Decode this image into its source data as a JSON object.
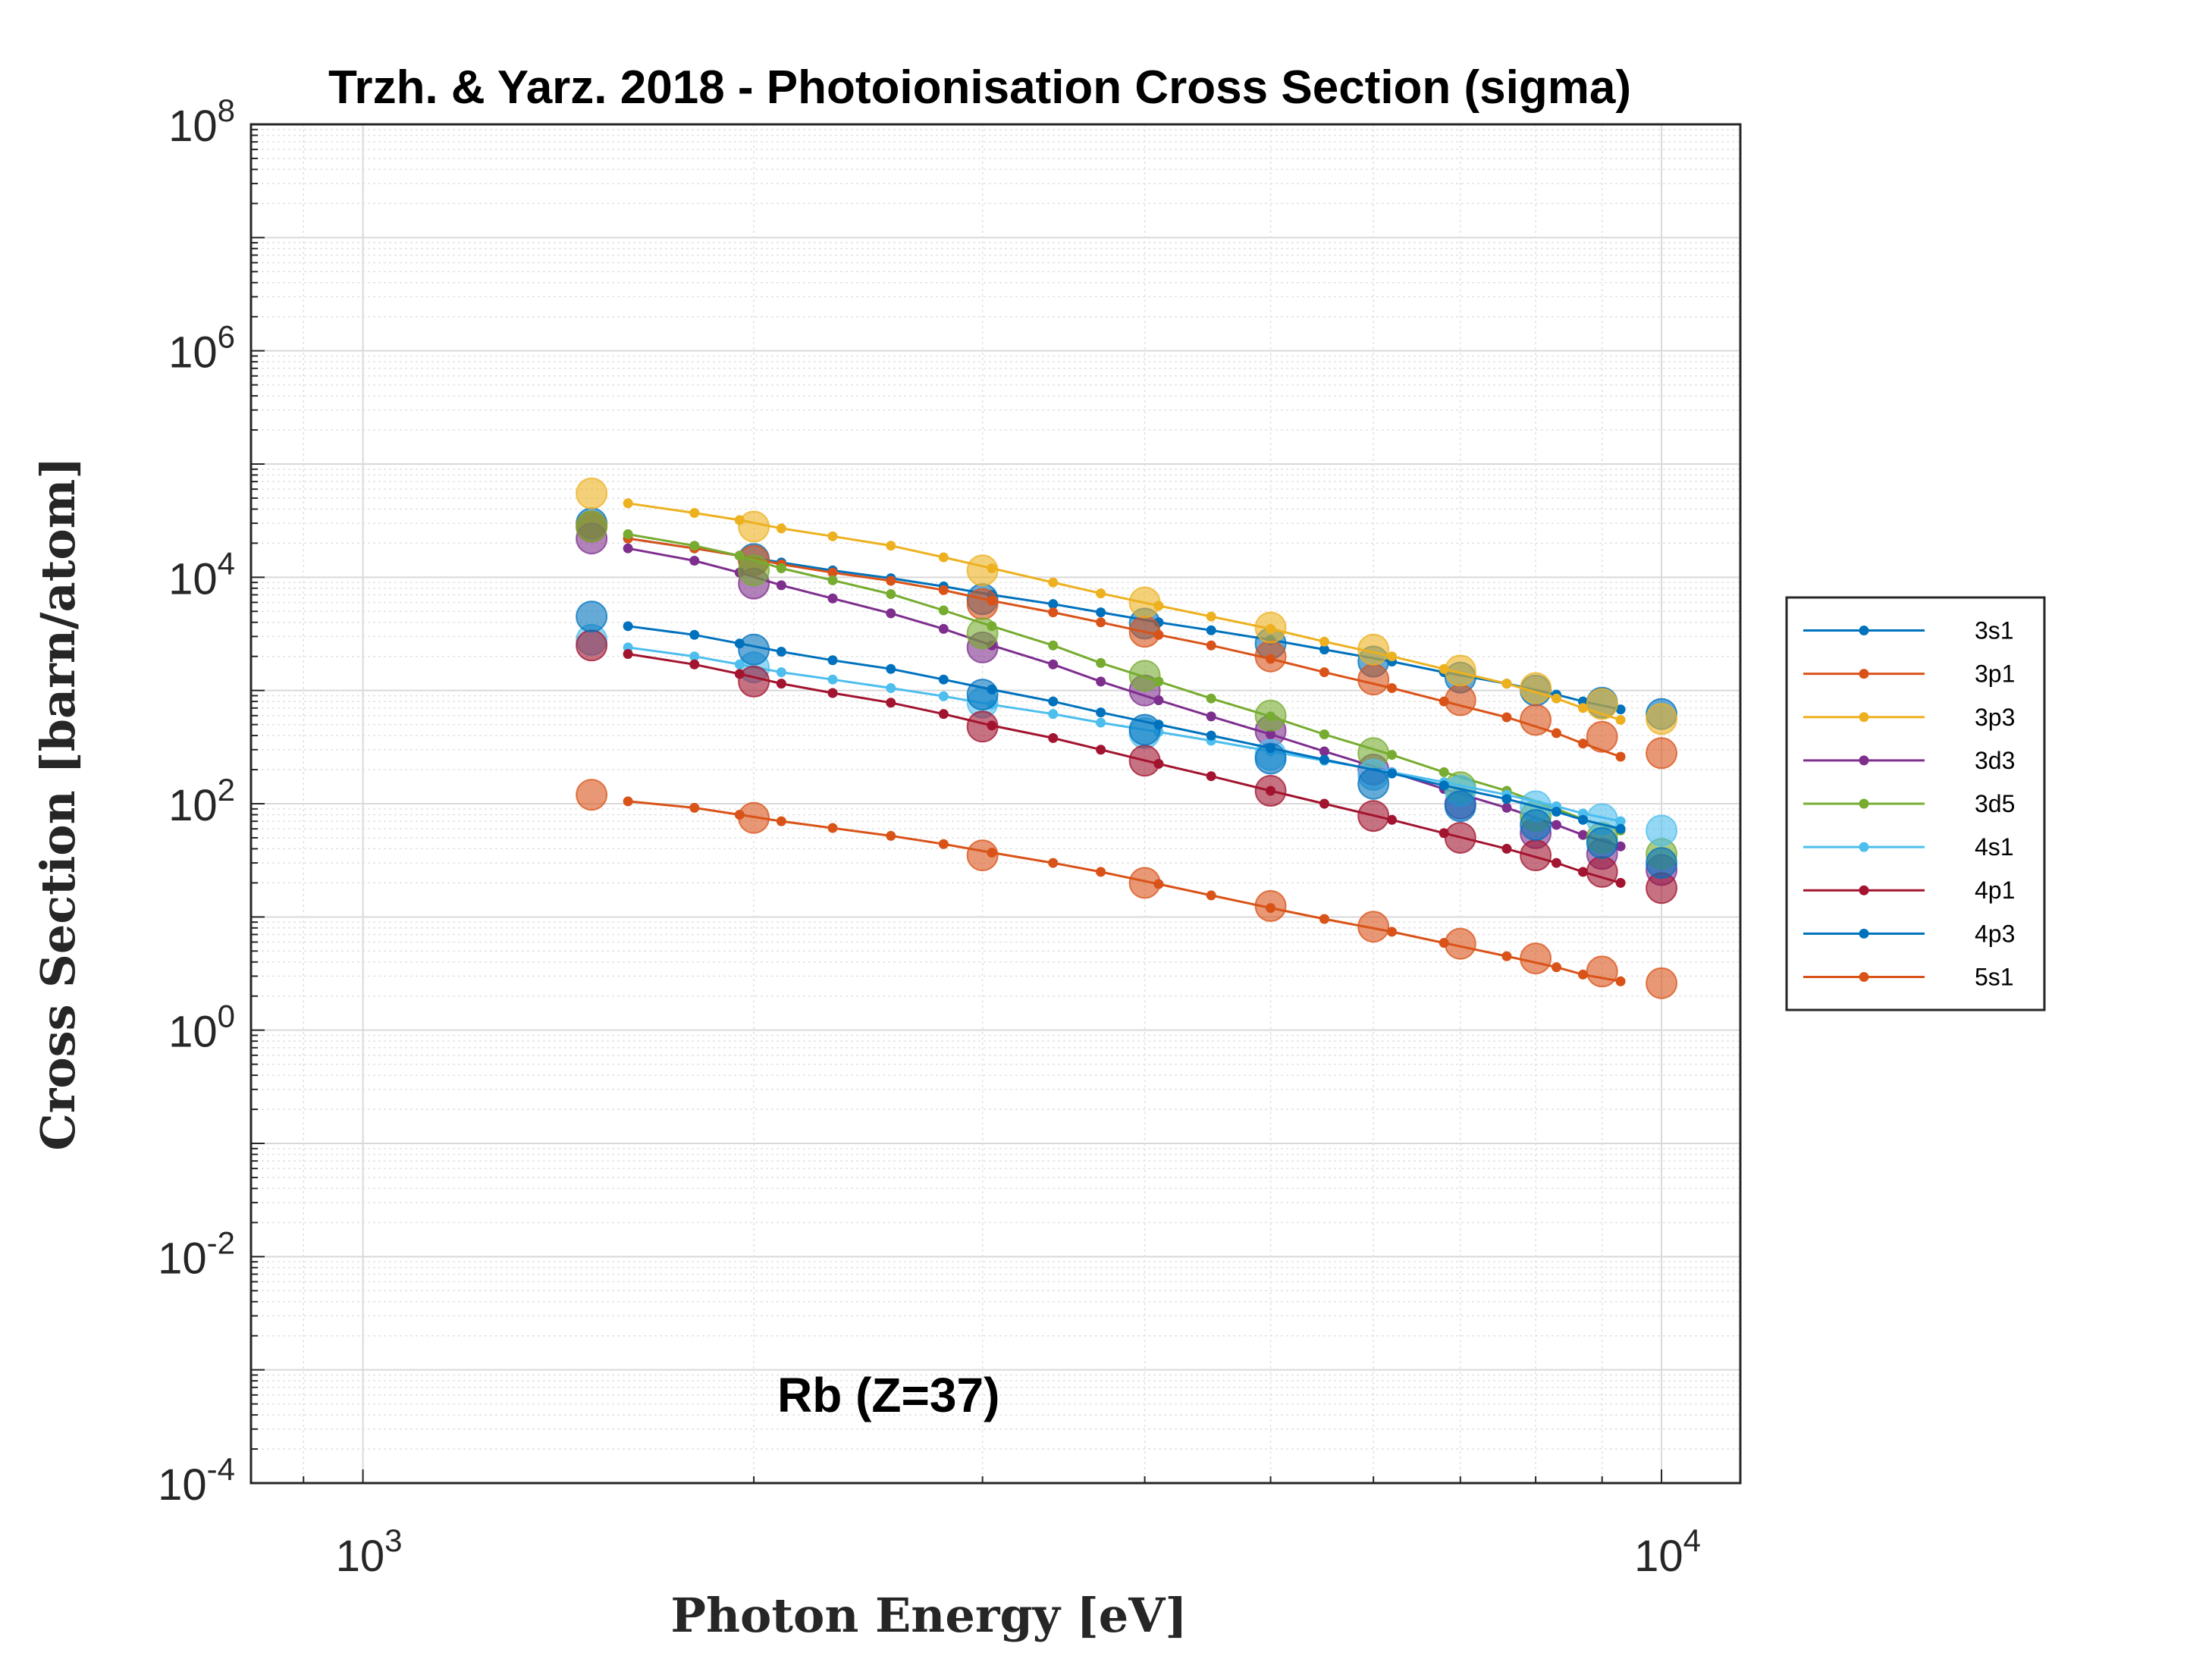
{
  "chart_data": {
    "type": "scatter",
    "title": "Trzh. & Yarz. 2018 - Photoionisation Cross Section (sigma)",
    "xlabel": "Photon Energy [eV]",
    "ylabel": "Cross Section [barn/atom]",
    "annotation": "Rb (Z=37)",
    "xscale": "log",
    "yscale": "log",
    "xlim": [
      820,
      11500
    ],
    "ylim": [
      0.0001,
      100000000
    ],
    "x_ticks": [
      {
        "base": "10",
        "exp": "3",
        "value": 1000
      },
      {
        "base": "10",
        "exp": "4",
        "value": 10000
      }
    ],
    "y_ticks": [
      {
        "base": "10",
        "exp": "8",
        "value": 100000000
      },
      {
        "base": "10",
        "exp": "6",
        "value": 1000000
      },
      {
        "base": "10",
        "exp": "4",
        "value": 10000
      },
      {
        "base": "10",
        "exp": "2",
        "value": 100
      },
      {
        "base": "10",
        "exp": "0",
        "value": 1
      },
      {
        "base": "10",
        "exp": "-2",
        "value": 0.01
      },
      {
        "base": "10",
        "exp": "-4",
        "value": 0.0001
      }
    ],
    "grid": true,
    "legend_position": "outside-right",
    "line_x": [
      1600,
      1800,
      1950,
      2100,
      2300,
      2550,
      2800,
      3050,
      3400,
      3700,
      4100,
      4500,
      5000,
      5500,
      6200,
      6800,
      7600,
      8300,
      8700,
      9300
    ],
    "marker_x": [
      1500,
      2000,
      3000,
      4000,
      5000,
      6000,
      7000,
      8000,
      9000,
      10000
    ],
    "series": [
      {
        "name": "3s1",
        "color": "#0072BD",
        "line_y": [
          22000,
          18000,
          15500,
          13500,
          11500,
          9800,
          8300,
          7000,
          5800,
          4900,
          4000,
          3400,
          2800,
          2300,
          1800,
          1450,
          1150,
          920,
          800,
          680
        ],
        "marker_y": [
          30000,
          14500,
          6400,
          3900,
          2600,
          1800,
          1300,
          1000,
          780,
          620
        ]
      },
      {
        "name": "3p1",
        "color": "#D95319",
        "line_y": [
          22000,
          18000,
          15500,
          13000,
          11000,
          9300,
          7700,
          6200,
          4900,
          4000,
          3100,
          2500,
          1900,
          1450,
          1050,
          800,
          580,
          420,
          340,
          260
        ],
        "marker_y": [
          28000,
          14000,
          5800,
          3300,
          2000,
          1250,
          820,
          550,
          390,
          280
        ]
      },
      {
        "name": "3p3",
        "color": "#EDB120",
        "line_y": [
          45000,
          37000,
          32000,
          27000,
          23000,
          19000,
          15000,
          12000,
          9000,
          7200,
          5600,
          4500,
          3500,
          2700,
          2000,
          1550,
          1150,
          850,
          700,
          550
        ],
        "marker_y": [
          55000,
          28000,
          11500,
          6000,
          3600,
          2300,
          1500,
          1050,
          760,
          560
        ]
      },
      {
        "name": "3d3",
        "color": "#7E2F8E",
        "line_y": [
          18000,
          14000,
          11000,
          8500,
          6500,
          4800,
          3500,
          2500,
          1700,
          1200,
          820,
          590,
          410,
          290,
          190,
          135,
          92,
          65,
          53,
          42
        ],
        "marker_y": [
          22000,
          8800,
          2400,
          1000,
          440,
          200,
          100,
          55,
          36,
          26
        ]
      },
      {
        "name": "3d5",
        "color": "#77AC30",
        "line_y": [
          24000,
          19000,
          15500,
          12000,
          9400,
          7100,
          5100,
          3700,
          2500,
          1750,
          1200,
          850,
          590,
          410,
          270,
          190,
          130,
          90,
          73,
          58
        ],
        "marker_y": [
          28000,
          11500,
          3200,
          1350,
          600,
          280,
          140,
          78,
          50,
          36
        ]
      },
      {
        "name": "4s1",
        "color": "#4DBEEE",
        "line_y": [
          2400,
          2000,
          1700,
          1450,
          1250,
          1050,
          890,
          750,
          620,
          520,
          430,
          360,
          290,
          240,
          190,
          155,
          120,
          95,
          82,
          70
        ],
        "marker_y": [
          2800,
          1600,
          780,
          420,
          270,
          180,
          130,
          95,
          73,
          58
        ]
      },
      {
        "name": "4p1",
        "color": "#A2142F",
        "line_y": [
          2100,
          1700,
          1400,
          1150,
          950,
          780,
          620,
          490,
          380,
          300,
          225,
          175,
          130,
          100,
          72,
          55,
          40,
          30,
          25,
          20
        ],
        "marker_y": [
          2500,
          1200,
          480,
          240,
          130,
          78,
          50,
          35,
          25,
          18
        ]
      },
      {
        "name": "4p3",
        "color": "#0072BD",
        "line_y": [
          3700,
          3100,
          2600,
          2200,
          1850,
          1550,
          1250,
          1020,
          800,
          640,
          500,
          400,
          310,
          245,
          185,
          145,
          110,
          85,
          72,
          60
        ],
        "marker_y": [
          4500,
          2300,
          920,
          450,
          250,
          150,
          95,
          65,
          45,
          30
        ]
      },
      {
        "name": "5s1",
        "color": "#D95319",
        "line_y": [
          105,
          92,
          80,
          70,
          61,
          52,
          44,
          37,
          30,
          25,
          19.5,
          15.5,
          12,
          9.6,
          7.4,
          5.9,
          4.5,
          3.6,
          3.1,
          2.7
        ],
        "marker_y": [
          120,
          75,
          35,
          20,
          12.5,
          8.2,
          5.8,
          4.3,
          3.3,
          2.6
        ]
      }
    ]
  }
}
